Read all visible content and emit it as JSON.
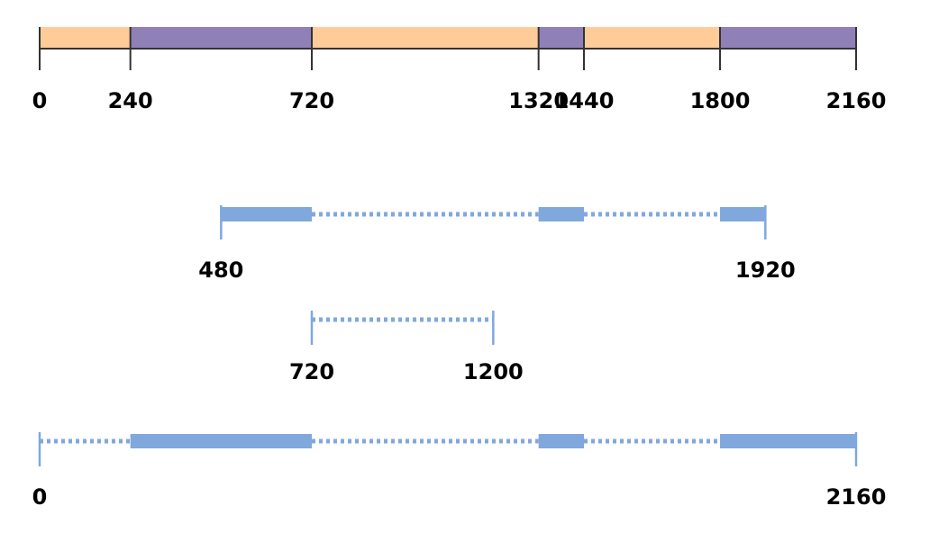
{
  "timeline": {
    "domain": [
      0,
      2160
    ],
    "colors": {
      "orange_segment": "#ffcc99",
      "purple_segment": "#8f80b8",
      "axis": "#333333",
      "blue": "#80a8dd",
      "label": "#000000"
    },
    "segments": [
      {
        "start": 0,
        "end": 240,
        "color": "orange"
      },
      {
        "start": 240,
        "end": 720,
        "color": "purple"
      },
      {
        "start": 720,
        "end": 1320,
        "color": "orange"
      },
      {
        "start": 1320,
        "end": 1440,
        "color": "purple"
      },
      {
        "start": 1440,
        "end": 1800,
        "color": "orange"
      },
      {
        "start": 1800,
        "end": 2160,
        "color": "purple"
      }
    ],
    "ticks": [
      {
        "value": 0,
        "label": "0"
      },
      {
        "value": 240,
        "label": "240"
      },
      {
        "value": 720,
        "label": "720"
      },
      {
        "value": 1320,
        "label": "1320"
      },
      {
        "value": 1440,
        "label": "1440"
      },
      {
        "value": 1800,
        "label": "1800"
      },
      {
        "value": 2160,
        "label": "2160"
      }
    ]
  },
  "ranges": [
    {
      "start": 480,
      "end": 1920,
      "start_label": "480",
      "end_label": "1920",
      "pieces": [
        {
          "start": 480,
          "end": 720,
          "style": "solid"
        },
        {
          "start": 720,
          "end": 1320,
          "style": "dotted"
        },
        {
          "start": 1320,
          "end": 1440,
          "style": "solid"
        },
        {
          "start": 1440,
          "end": 1800,
          "style": "dotted"
        },
        {
          "start": 1800,
          "end": 1920,
          "style": "solid"
        }
      ]
    },
    {
      "start": 720,
      "end": 1200,
      "start_label": "720",
      "end_label": "1200",
      "pieces": [
        {
          "start": 720,
          "end": 1200,
          "style": "dotted"
        }
      ]
    },
    {
      "start": 0,
      "end": 2160,
      "start_label": "0",
      "end_label": "2160",
      "pieces": [
        {
          "start": 0,
          "end": 240,
          "style": "dotted"
        },
        {
          "start": 240,
          "end": 720,
          "style": "solid"
        },
        {
          "start": 720,
          "end": 1320,
          "style": "dotted"
        },
        {
          "start": 1320,
          "end": 1440,
          "style": "solid"
        },
        {
          "start": 1440,
          "end": 1800,
          "style": "dotted"
        },
        {
          "start": 1800,
          "end": 2160,
          "style": "solid"
        }
      ]
    }
  ]
}
